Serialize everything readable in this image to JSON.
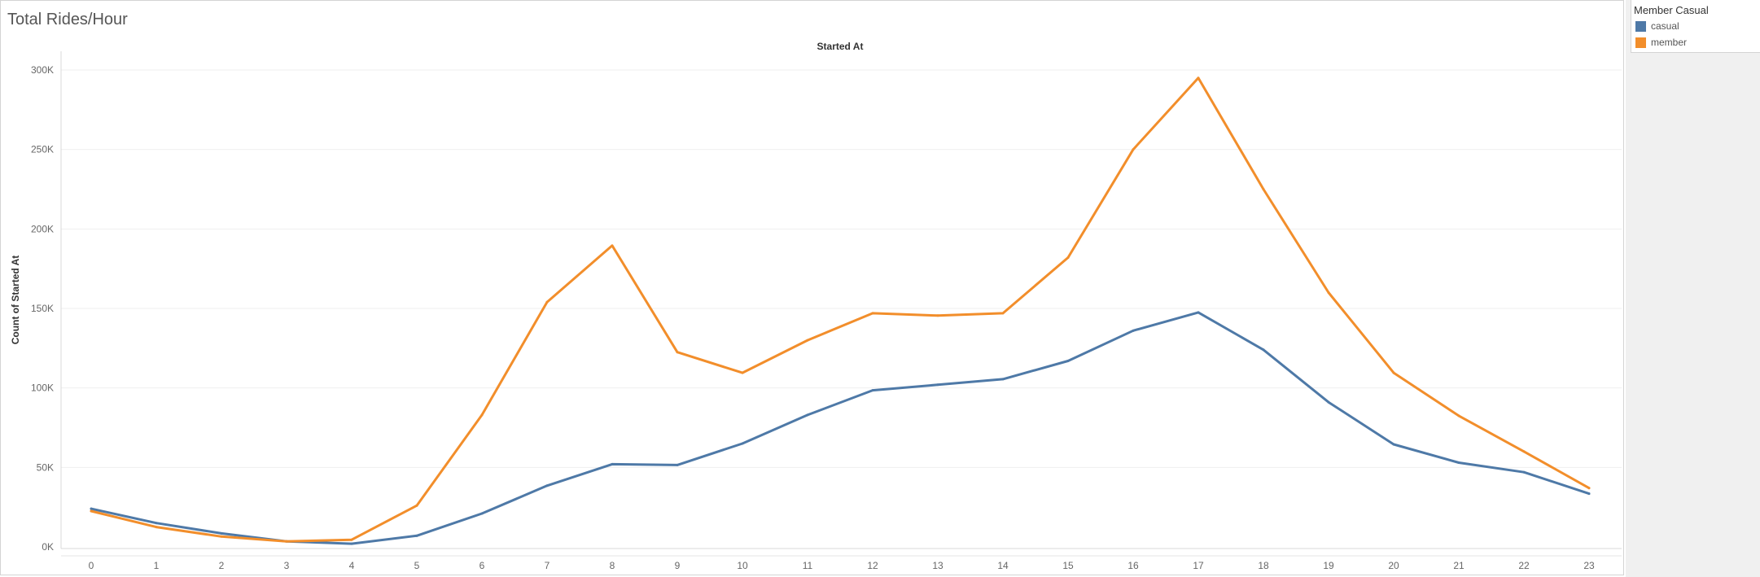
{
  "worksheet": {
    "title": "Total Rides/Hour"
  },
  "legend": {
    "title": "Member Casual",
    "items": [
      {
        "label": "casual",
        "color": "#4e79a7"
      },
      {
        "label": "member",
        "color": "#f28e2b"
      }
    ]
  },
  "chart_data": {
    "type": "line",
    "title": "Total Rides/Hour",
    "column_header": "Started At",
    "xlabel": "",
    "ylabel": "Count of Started At",
    "x": [
      "0",
      "1",
      "2",
      "3",
      "4",
      "5",
      "6",
      "7",
      "8",
      "9",
      "10",
      "11",
      "12",
      "13",
      "14",
      "15",
      "16",
      "17",
      "18",
      "19",
      "20",
      "21",
      "22",
      "23"
    ],
    "ylim": [
      0,
      300000
    ],
    "yticks": [
      0,
      50000,
      100000,
      150000,
      200000,
      250000,
      300000
    ],
    "ytick_labels": [
      "0K",
      "50K",
      "100K",
      "150K",
      "200K",
      "250K",
      "300K"
    ],
    "grid": true,
    "legend_position": "right",
    "series": [
      {
        "name": "casual",
        "color": "#4e79a7",
        "values": [
          24000,
          15000,
          8500,
          3500,
          2000,
          7000,
          21000,
          38500,
          52000,
          51500,
          65000,
          83000,
          98500,
          102000,
          105500,
          117000,
          136000,
          147500,
          124000,
          91000,
          64500,
          53000,
          47000,
          33500
        ]
      },
      {
        "name": "member",
        "color": "#f28e2b",
        "values": [
          22500,
          12500,
          6500,
          3500,
          4500,
          26000,
          83000,
          154000,
          189500,
          122500,
          109500,
          130000,
          147000,
          145500,
          147000,
          182000,
          250000,
          295000,
          225000,
          160000,
          109500,
          82500,
          60000,
          37000
        ]
      }
    ]
  }
}
